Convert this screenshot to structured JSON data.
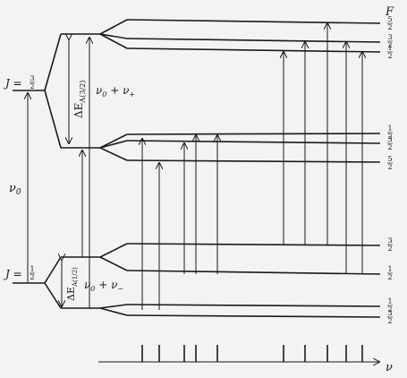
{
  "axis_label_top": "F",
  "axis_label_bottom": "ν",
  "upper_state": {
    "label_J": "J =",
    "value": "3/2"
  },
  "lower_state": {
    "label_J": "J =",
    "value": "1/2"
  },
  "splitting_upper": {
    "delta": "ΔE",
    "sub": "A(3/2)"
  },
  "splitting_lower": {
    "delta": "ΔE",
    "sub": "A(1/2)"
  },
  "nu0": {
    "main": "ν",
    "sub": "0"
  },
  "nu_plus": {
    "text": "ν",
    "sub0": "0",
    "mid": " + ν",
    "sub": "+"
  },
  "nu_minus": {
    "text": "ν",
    "sub0": "0",
    "mid": " + ν",
    "sub": "−"
  },
  "F_groups": {
    "upper_top": [
      "5/2",
      "3/2",
      "1/2"
    ],
    "upper_bottom": [
      "1/2",
      "3/2",
      "5/2"
    ],
    "lower_top": [
      "3/2",
      "1/2"
    ],
    "lower_bottom": [
      "1/2",
      "3/2"
    ]
  }
}
